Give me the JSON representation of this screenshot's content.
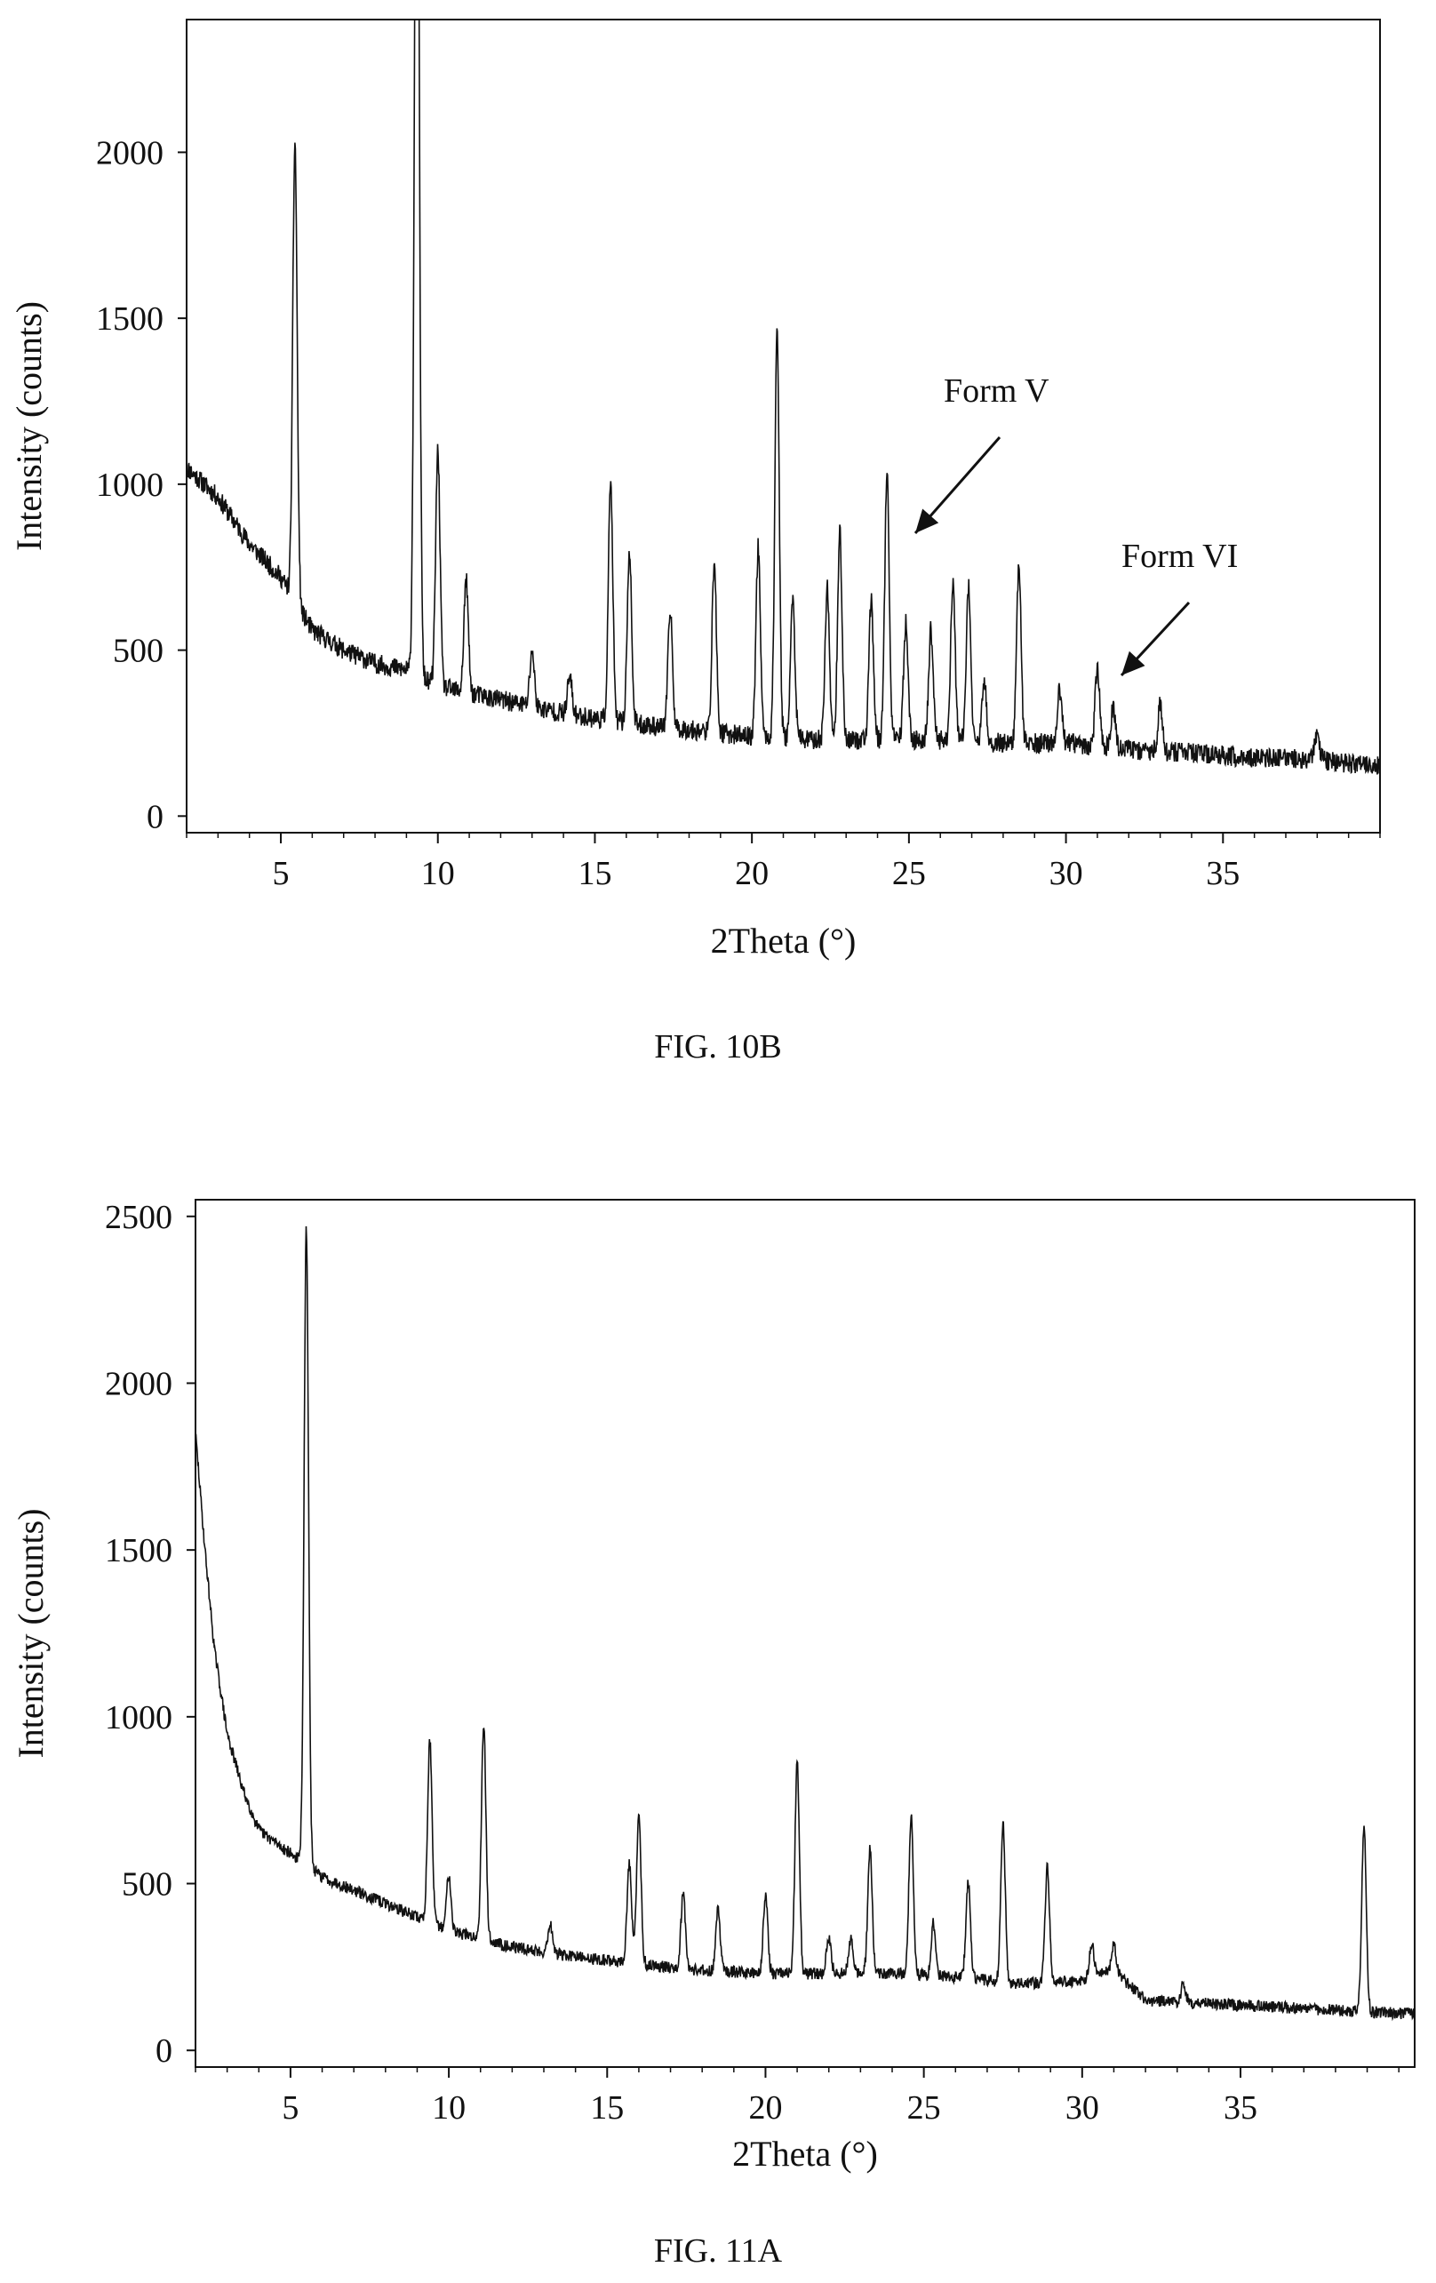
{
  "chart_data": [
    {
      "type": "line",
      "figure_label": "FIG. 10B",
      "xlabel": "2Theta (°)",
      "ylabel": "Intensity (counts)",
      "xlim": [
        2,
        40
      ],
      "ylim": [
        -50,
        2400
      ],
      "xticks": [
        5,
        10,
        15,
        20,
        25,
        30,
        35
      ],
      "yticks": [
        0,
        500,
        1000,
        1500,
        2000
      ],
      "grid": false,
      "baseline": [
        [
          2,
          1050
        ],
        [
          3,
          960
        ],
        [
          4,
          820
        ],
        [
          5,
          720
        ],
        [
          6,
          560
        ],
        [
          7,
          500
        ],
        [
          8,
          460
        ],
        [
          9,
          440
        ],
        [
          10,
          390
        ],
        [
          12,
          350
        ],
        [
          14,
          310
        ],
        [
          16,
          280
        ],
        [
          18,
          260
        ],
        [
          20,
          240
        ],
        [
          22,
          230
        ],
        [
          24,
          230
        ],
        [
          26,
          230
        ],
        [
          28,
          220
        ],
        [
          30,
          220
        ],
        [
          32,
          200
        ],
        [
          34,
          190
        ],
        [
          36,
          175
        ],
        [
          38,
          170
        ],
        [
          40,
          150
        ]
      ],
      "noise": 30,
      "peaks": [
        {
          "x": 5.45,
          "y": 2030
        },
        {
          "x": 9.35,
          "y": 2520
        },
        {
          "x": 9.3,
          "y": 1650
        },
        {
          "x": 10.0,
          "y": 1100
        },
        {
          "x": 10.9,
          "y": 710
        },
        {
          "x": 13.0,
          "y": 500
        },
        {
          "x": 14.2,
          "y": 420
        },
        {
          "x": 15.5,
          "y": 1010
        },
        {
          "x": 16.1,
          "y": 800
        },
        {
          "x": 17.4,
          "y": 620
        },
        {
          "x": 18.8,
          "y": 760
        },
        {
          "x": 20.2,
          "y": 810
        },
        {
          "x": 20.8,
          "y": 1470
        },
        {
          "x": 21.3,
          "y": 650
        },
        {
          "x": 22.4,
          "y": 690
        },
        {
          "x": 22.8,
          "y": 850
        },
        {
          "x": 23.8,
          "y": 650
        },
        {
          "x": 24.3,
          "y": 1040
        },
        {
          "x": 24.9,
          "y": 580
        },
        {
          "x": 25.7,
          "y": 560
        },
        {
          "x": 26.4,
          "y": 710
        },
        {
          "x": 26.9,
          "y": 690
        },
        {
          "x": 27.4,
          "y": 400
        },
        {
          "x": 28.5,
          "y": 760
        },
        {
          "x": 29.8,
          "y": 380
        },
        {
          "x": 31.0,
          "y": 450
        },
        {
          "x": 31.5,
          "y": 330
        },
        {
          "x": 33.0,
          "y": 340
        },
        {
          "x": 38.0,
          "y": 250
        }
      ],
      "annotations": [
        {
          "text": "Form V",
          "x": 24.9,
          "y": 870
        },
        {
          "text": "Form VI",
          "x": 31.6,
          "y": 460
        }
      ]
    },
    {
      "type": "line",
      "figure_label": "FIG. 11A",
      "xlabel": "2Theta (°)",
      "ylabel": "Intensity (counts)",
      "xlim": [
        2,
        40.5
      ],
      "ylim": [
        -50,
        2550
      ],
      "xticks": [
        5,
        10,
        15,
        20,
        25,
        30,
        35
      ],
      "yticks": [
        0,
        500,
        1000,
        1500,
        2000,
        2500
      ],
      "grid": false,
      "baseline": [
        [
          2,
          1850
        ],
        [
          2.3,
          1500
        ],
        [
          2.6,
          1200
        ],
        [
          3,
          950
        ],
        [
          3.5,
          780
        ],
        [
          4,
          660
        ],
        [
          5,
          590
        ],
        [
          6,
          520
        ],
        [
          7,
          480
        ],
        [
          8,
          440
        ],
        [
          9,
          400
        ],
        [
          10,
          360
        ],
        [
          12,
          310
        ],
        [
          14,
          280
        ],
        [
          16,
          260
        ],
        [
          18,
          240
        ],
        [
          20,
          230
        ],
        [
          22,
          230
        ],
        [
          24,
          230
        ],
        [
          26,
          220
        ],
        [
          28,
          200
        ],
        [
          30,
          210
        ],
        [
          31,
          240
        ],
        [
          32,
          150
        ],
        [
          34,
          140
        ],
        [
          36,
          130
        ],
        [
          38,
          120
        ],
        [
          40.5,
          110
        ]
      ],
      "noise": 18,
      "peaks": [
        {
          "x": 5.5,
          "y": 2460
        },
        {
          "x": 9.4,
          "y": 930
        },
        {
          "x": 10.0,
          "y": 530
        },
        {
          "x": 11.1,
          "y": 980
        },
        {
          "x": 13.2,
          "y": 380
        },
        {
          "x": 15.7,
          "y": 560
        },
        {
          "x": 16.0,
          "y": 700
        },
        {
          "x": 17.4,
          "y": 470
        },
        {
          "x": 18.5,
          "y": 420
        },
        {
          "x": 20.0,
          "y": 470
        },
        {
          "x": 21.0,
          "y": 860
        },
        {
          "x": 22.0,
          "y": 340
        },
        {
          "x": 22.7,
          "y": 340
        },
        {
          "x": 23.3,
          "y": 600
        },
        {
          "x": 24.6,
          "y": 700
        },
        {
          "x": 25.3,
          "y": 380
        },
        {
          "x": 26.4,
          "y": 510
        },
        {
          "x": 27.5,
          "y": 680
        },
        {
          "x": 28.9,
          "y": 550
        },
        {
          "x": 30.3,
          "y": 320
        },
        {
          "x": 31.0,
          "y": 320
        },
        {
          "x": 33.2,
          "y": 200
        },
        {
          "x": 38.9,
          "y": 680
        }
      ],
      "annotations": []
    }
  ]
}
